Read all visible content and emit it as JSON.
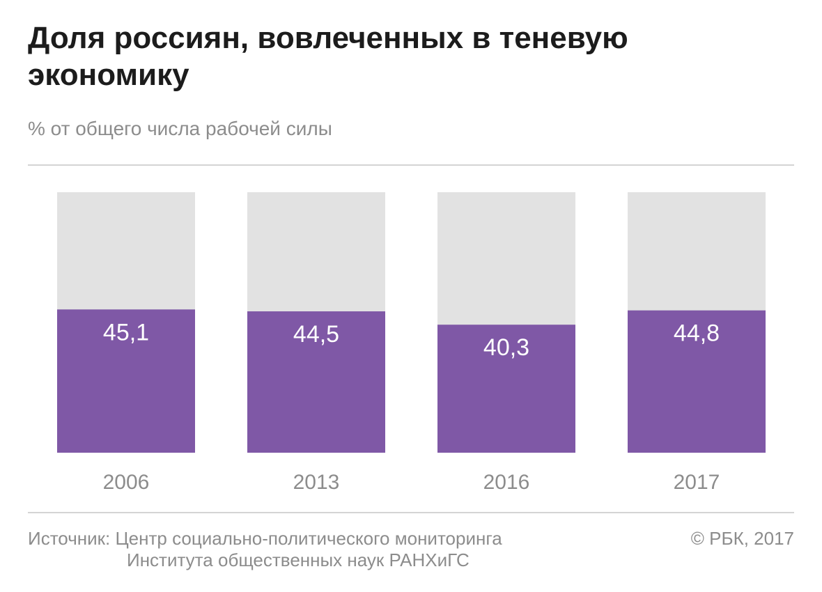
{
  "chart_data": {
    "type": "bar",
    "title": [
      "Доля россиян, вовлеченных в теневую",
      "экономику"
    ],
    "subtitle": "% от общего числа рабочей силы",
    "categories": [
      "2006",
      "2013",
      "2016",
      "2017"
    ],
    "values": [
      45.1,
      44.5,
      40.3,
      44.8
    ],
    "value_labels": [
      "45,1",
      "44,5",
      "40,3",
      "44,8"
    ],
    "ylim": [
      0,
      82
    ],
    "grid": false,
    "colors": {
      "bar": "#7f58a6",
      "track": "#e2e2e2",
      "value_text": "#ffffff",
      "category_text": "#8c8c8c"
    }
  },
  "footer": {
    "source_line1": "Источник: Центр социально-политического мониторинга",
    "source_line2": "Института общественных наук РАНХиГС",
    "copyright": "© РБК, 2017"
  }
}
